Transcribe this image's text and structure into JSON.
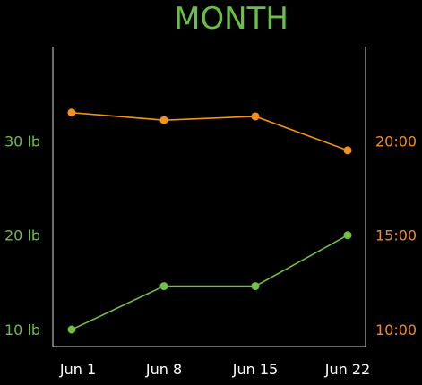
{
  "chart_data": {
    "type": "line",
    "title": "MONTH",
    "categories": [
      "Jun 1",
      "Jun 8",
      "Jun 15",
      "Jun 22"
    ],
    "left_axis": {
      "ticks": [
        "10 lb",
        "20 lb",
        "30 lb"
      ],
      "tick_values": [
        10,
        20,
        30
      ],
      "range": [
        8.2,
        40
      ]
    },
    "right_axis": {
      "ticks": [
        "10:00",
        "15:00",
        "20:00"
      ],
      "tick_values": [
        10,
        15,
        20
      ],
      "range": [
        9.1,
        25.0
      ]
    },
    "series": [
      {
        "axis": "right",
        "values": [
          21.5,
          21.1,
          21.3,
          19.5
        ]
      },
      {
        "axis": "left",
        "values": [
          10.0,
          14.6,
          14.6,
          20.0
        ]
      }
    ],
    "colors": {
      "title": "#6bbf44",
      "left_axis": "#6bbf44",
      "right_axis": "#f08a24",
      "right_series": "#f5921e",
      "left_series": "#72c043",
      "axis_lines": "#d8d8d8",
      "x_labels": "#ffffff",
      "background": "#000000"
    },
    "grid": false
  }
}
